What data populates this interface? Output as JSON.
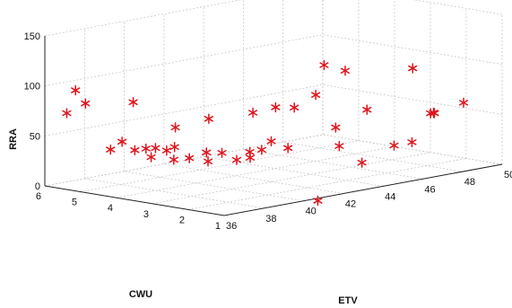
{
  "chart_data": {
    "type": "scatter",
    "subtype": "3d-scatter",
    "marker": "asterisk",
    "marker_color": "#e0141c",
    "grid": true,
    "xlabel": "ETV",
    "ylabel": "CWU",
    "zlabel": "RRA",
    "xlim": [
      36,
      50
    ],
    "ylim": [
      1,
      6
    ],
    "zlim": [
      0,
      150
    ],
    "xticks": [
      "36",
      "38",
      "40",
      "42",
      "44",
      "46",
      "48",
      "50"
    ],
    "yticks": [
      "1",
      "2",
      "3",
      "4",
      "5",
      "6"
    ],
    "zticks": [
      "0",
      "50",
      "100",
      "150"
    ],
    "points": [
      {
        "x": 36.2,
        "y": 5.5,
        "z": 75
      },
      {
        "x": 36.1,
        "y": 5.2,
        "z": 100
      },
      {
        "x": 36.6,
        "y": 5.2,
        "z": 85
      },
      {
        "x": 36.6,
        "y": 4.5,
        "z": 43
      },
      {
        "x": 37.0,
        "y": 4.4,
        "z": 50
      },
      {
        "x": 37.1,
        "y": 4.1,
        "z": 43
      },
      {
        "x": 37.3,
        "y": 3.9,
        "z": 45
      },
      {
        "x": 37.2,
        "y": 3.7,
        "z": 38
      },
      {
        "x": 37.6,
        "y": 3.8,
        "z": 45
      },
      {
        "x": 37.8,
        "y": 3.6,
        "z": 43
      },
      {
        "x": 37.8,
        "y": 3.4,
        "z": 35
      },
      {
        "x": 37.2,
        "y": 4.2,
        "z": 90
      },
      {
        "x": 38.2,
        "y": 3.6,
        "z": 45
      },
      {
        "x": 38.4,
        "y": 3.3,
        "z": 35
      },
      {
        "x": 38.6,
        "y": 3.8,
        "z": 62
      },
      {
        "x": 38.8,
        "y": 3.0,
        "z": 32
      },
      {
        "x": 38.9,
        "y": 3.1,
        "z": 40
      },
      {
        "x": 39.2,
        "y": 3.2,
        "z": 72
      },
      {
        "x": 39.5,
        "y": 3.0,
        "z": 38
      },
      {
        "x": 39.7,
        "y": 2.7,
        "z": 32
      },
      {
        "x": 40.0,
        "y": 2.5,
        "z": 40
      },
      {
        "x": 40.2,
        "y": 2.6,
        "z": 33
      },
      {
        "x": 40.6,
        "y": 2.5,
        "z": 40
      },
      {
        "x": 40.7,
        "y": 2.8,
        "z": 75
      },
      {
        "x": 40.9,
        "y": 2.4,
        "z": 48
      },
      {
        "x": 41.3,
        "y": 2.5,
        "z": 80
      },
      {
        "x": 41.2,
        "y": 2.1,
        "z": 42
      },
      {
        "x": 41.7,
        "y": 2.2,
        "z": 80
      },
      {
        "x": 41.8,
        "y": 1.6,
        "z": -10
      },
      {
        "x": 42.6,
        "y": 2.1,
        "z": 90
      },
      {
        "x": 42.7,
        "y": 1.6,
        "z": 60
      },
      {
        "x": 42.7,
        "y": 1.5,
        "z": 42
      },
      {
        "x": 43.2,
        "y": 2.2,
        "z": 117
      },
      {
        "x": 43.9,
        "y": 2.0,
        "z": 110
      },
      {
        "x": 43.3,
        "y": 1.2,
        "z": 25
      },
      {
        "x": 45.0,
        "y": 2.0,
        "z": 67
      },
      {
        "x": 45.1,
        "y": 1.3,
        "z": 35
      },
      {
        "x": 46.0,
        "y": 1.3,
        "z": 35
      },
      {
        "x": 47.3,
        "y": 2.0,
        "z": 100
      },
      {
        "x": 47.3,
        "y": 1.5,
        "z": 58
      },
      {
        "x": 47.4,
        "y": 1.45,
        "z": 58
      },
      {
        "x": 47.45,
        "y": 1.5,
        "z": 58
      },
      {
        "x": 48.6,
        "y": 1.3,
        "z": 65
      }
    ]
  }
}
